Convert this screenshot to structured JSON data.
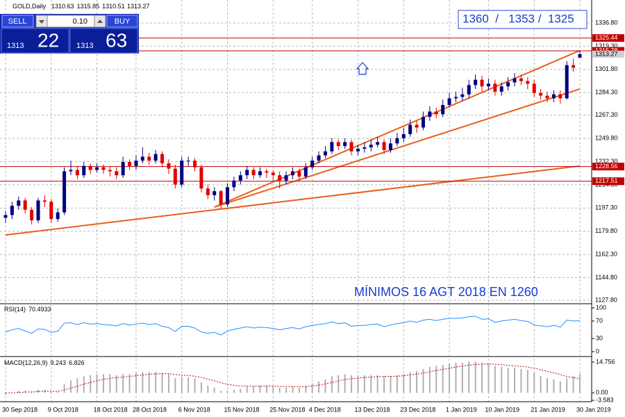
{
  "trade_panel": {
    "sell": "SELL",
    "buy": "BUY",
    "volume": "0.10",
    "bid_big": "1313",
    "bid_small": "22",
    "ask_big": "1313",
    "ask_small": "63"
  },
  "chart_data": [
    {
      "type": "candlestick",
      "title": "GOLD,Daily",
      "categories": [
        "30 Sep 2018",
        null,
        null,
        null,
        null,
        null,
        null,
        "9 Oct 2018",
        null,
        null,
        null,
        null,
        null,
        null,
        "18 Oct 2018",
        null,
        null,
        null,
        null,
        null,
        "28 Oct 2018",
        null,
        null,
        null,
        null,
        null,
        null,
        "6 Nov 2018",
        null,
        null,
        null,
        null,
        null,
        null,
        "15 Nov 2018",
        null,
        null,
        null,
        null,
        null,
        null,
        "25 Nov 2018",
        null,
        null,
        null,
        null,
        null,
        "4 Dec 2018",
        null,
        null,
        null,
        null,
        null,
        null,
        "13 Dec 2018",
        null,
        null,
        null,
        null,
        null,
        null,
        "23 Dec 2018",
        null,
        null,
        null,
        null,
        null,
        null,
        "1 Jan 2019",
        null,
        null,
        null,
        null,
        null,
        "10 Jan 2019",
        null,
        null,
        null,
        null,
        null,
        null,
        "21 Jan 2019",
        null,
        null,
        null,
        null,
        null,
        null,
        "30 Jan 2019"
      ],
      "series": [
        {
          "up_color": "#000080",
          "down_color": "#e00000",
          "open": [
            1190,
            1192,
            1199,
            1203,
            1196,
            1188,
            1203,
            1202,
            1189,
            1194,
            1225,
            1226,
            1222,
            1229,
            1226,
            1228,
            1226,
            1225,
            1222,
            1232,
            1229,
            1233,
            1236,
            1233,
            1238,
            1231,
            1227,
            1215,
            1233,
            1233,
            1228,
            1212,
            1207,
            1210,
            1200,
            1213,
            1218,
            1222,
            1226,
            1222,
            1225,
            1224,
            1222,
            1218,
            1222,
            1225,
            1221,
            1228,
            1233,
            1237,
            1240,
            1247,
            1244,
            1247,
            1240,
            1242,
            1243,
            1245,
            1247,
            1241,
            1246,
            1250,
            1253,
            1260,
            1258,
            1266,
            1270,
            1268,
            1275,
            1280,
            1281,
            1283,
            1290,
            1294,
            1289,
            1291,
            1285,
            1289,
            1292,
            1295,
            1293,
            1291,
            1284,
            1282,
            1280,
            1283,
            1280,
            1305,
            1310.63
          ],
          "high": [
            1195,
            1202,
            1206,
            1205,
            1198,
            1205,
            1207,
            1204,
            1197,
            1228,
            1233,
            1229,
            1232,
            1231,
            1231,
            1230,
            1229,
            1228,
            1236,
            1234,
            1237,
            1243,
            1239,
            1241,
            1240,
            1234,
            1230,
            1236,
            1236,
            1235,
            1230,
            1215,
            1213,
            1211,
            1216,
            1221,
            1225,
            1229,
            1228,
            1228,
            1227,
            1226,
            1225,
            1225,
            1228,
            1227,
            1231,
            1236,
            1240,
            1244,
            1250,
            1249,
            1250,
            1249,
            1245,
            1247,
            1249,
            1251,
            1249,
            1250,
            1254,
            1258,
            1264,
            1263,
            1270,
            1274,
            1273,
            1279,
            1284,
            1285,
            1288,
            1294,
            1298,
            1297,
            1295,
            1294,
            1292,
            1296,
            1299,
            1298,
            1296,
            1294,
            1287,
            1285,
            1286,
            1286,
            1308,
            1310,
            1315.85
          ],
          "low": [
            1186,
            1189,
            1196,
            1193,
            1185,
            1186,
            1198,
            1186,
            1187,
            1192,
            1222,
            1219,
            1220,
            1223,
            1224,
            1223,
            1221,
            1219,
            1220,
            1226,
            1226,
            1231,
            1230,
            1231,
            1228,
            1223,
            1212,
            1213,
            1229,
            1225,
            1209,
            1204,
            1203,
            1197,
            1198,
            1210,
            1215,
            1219,
            1219,
            1220,
            1220,
            1218,
            1212,
            1215,
            1219,
            1218,
            1219,
            1226,
            1231,
            1235,
            1238,
            1241,
            1242,
            1237,
            1237,
            1239,
            1240,
            1243,
            1238,
            1239,
            1244,
            1247,
            1251,
            1254,
            1256,
            1263,
            1265,
            1266,
            1273,
            1277,
            1278,
            1280,
            1287,
            1285,
            1286,
            1282,
            1282,
            1286,
            1289,
            1290,
            1287,
            1281,
            1279,
            1277,
            1277,
            1276,
            1279,
            1300,
            1310.51
          ],
          "close": [
            1192,
            1199,
            1203,
            1196,
            1188,
            1203,
            1202,
            1189,
            1194,
            1225,
            1226,
            1222,
            1229,
            1226,
            1228,
            1226,
            1225,
            1222,
            1232,
            1229,
            1233,
            1236,
            1233,
            1238,
            1231,
            1227,
            1215,
            1233,
            1233,
            1228,
            1212,
            1207,
            1210,
            1200,
            1213,
            1218,
            1222,
            1226,
            1222,
            1225,
            1224,
            1222,
            1218,
            1222,
            1225,
            1221,
            1228,
            1233,
            1237,
            1240,
            1247,
            1244,
            1247,
            1240,
            1242,
            1243,
            1245,
            1247,
            1241,
            1246,
            1250,
            1253,
            1260,
            1258,
            1266,
            1270,
            1268,
            1275,
            1280,
            1281,
            1283,
            1290,
            1294,
            1289,
            1291,
            1285,
            1289,
            1292,
            1295,
            1293,
            1291,
            1284,
            1282,
            1280,
            1283,
            1280,
            1305,
            1303,
            1313.27
          ]
        }
      ],
      "ylim": [
        1125.7,
        1354.1
      ],
      "yticks": [
        {
          "value": 1336.8,
          "label": "1336.80"
        },
        {
          "value": 1319.3,
          "label": "1319.30"
        },
        {
          "value": 1301.8,
          "label": "1301.80"
        },
        {
          "value": 1284.3,
          "label": "1284.30"
        },
        {
          "value": 1267.3,
          "label": "1267.30"
        },
        {
          "value": 1249.8,
          "label": "1249.80"
        },
        {
          "value": 1232.3,
          "label": "1232.30"
        },
        {
          "value": 1214.8,
          "label": "1214.80"
        },
        {
          "value": 1197.3,
          "label": "1197.30"
        },
        {
          "value": 1179.8,
          "label": "1179.80"
        },
        {
          "value": 1162.3,
          "label": "1162.30"
        },
        {
          "value": 1144.8,
          "label": "1144.80"
        },
        {
          "value": 1127.8,
          "label": "1127.80"
        }
      ],
      "grid": true,
      "levels": [
        {
          "value": 1325.44,
          "color": "#c00000"
        },
        {
          "value": 1315.78,
          "color": "#c00000"
        },
        {
          "value": 1228.56,
          "color": "#c00000"
        },
        {
          "value": 1217.51,
          "color": "#c00000"
        }
      ],
      "trendline_color": "#e8601c",
      "trendlines": [
        {
          "x": [
            0,
            88
          ],
          "y": [
            1177,
            1229
          ]
        },
        {
          "x": [
            32,
            88
          ],
          "y": [
            1198,
            1316
          ]
        },
        {
          "x": [
            32,
            88
          ],
          "y": [
            1198,
            1287
          ]
        }
      ],
      "annotations": [
        "1360  /   1353 /  1325",
        "MÍNIMOS 16 AGT 2018 EN 1260"
      ]
    },
    {
      "type": "line",
      "title": "RSI(14)",
      "color": "#1e90ff",
      "ylim": [
        0,
        100
      ],
      "yticks": [
        100,
        70,
        30,
        0
      ],
      "values": [
        45,
        50,
        53,
        47,
        42,
        52,
        51,
        44,
        47,
        65,
        66,
        62,
        66,
        63,
        64,
        62,
        61,
        59,
        64,
        61,
        63,
        65,
        62,
        64,
        58,
        55,
        46,
        58,
        58,
        54,
        45,
        42,
        44,
        38,
        47,
        51,
        54,
        57,
        54,
        56,
        55,
        53,
        50,
        53,
        55,
        52,
        57,
        60,
        62,
        64,
        68,
        64,
        66,
        58,
        60,
        60,
        62,
        63,
        57,
        61,
        64,
        66,
        70,
        67,
        72,
        74,
        71,
        74,
        76,
        76,
        77,
        80,
        81,
        74,
        75,
        67,
        70,
        72,
        74,
        71,
        69,
        61,
        59,
        57,
        60,
        56,
        72,
        70,
        70.4933
      ]
    },
    {
      "type": "macd",
      "title": "MACD(12,26,9)",
      "ylim": [
        -3.583,
        14.756
      ],
      "yticks": [
        14.756,
        {
          "value": 0,
          "label": "0.00"
        },
        -3.583
      ],
      "series": [
        {
          "color": "#b0b0b0",
          "values": [
            -1,
            0,
            1,
            1,
            0.5,
            1.5,
            1.5,
            0.5,
            0.5,
            4,
            6,
            7,
            8,
            8.5,
            9,
            9,
            9,
            8.5,
            9,
            9,
            9.5,
            10,
            10,
            10,
            9.5,
            9,
            7,
            7.5,
            7.5,
            7,
            5,
            3.5,
            2.5,
            1,
            1,
            1.5,
            2,
            3,
            3,
            3.5,
            3.5,
            3,
            2.5,
            2.5,
            3,
            2.5,
            3.5,
            4.5,
            5.5,
            6.5,
            8,
            8.5,
            9,
            8.5,
            8.5,
            8.5,
            8.5,
            8.5,
            8,
            8,
            8.5,
            9,
            10,
            10.5,
            11.5,
            12.5,
            13,
            13.5,
            14,
            14.5,
            14.5,
            15,
            15,
            14.5,
            14,
            13,
            12.5,
            12,
            12,
            11.5,
            11,
            9.5,
            8,
            7,
            6.5,
            5.5,
            7,
            8,
            9.243
          ]
        },
        {
          "color": "#c00000",
          "values": [
            0,
            0,
            0.2,
            0.4,
            0.4,
            0.6,
            0.8,
            0.7,
            0.7,
            1.4,
            2.3,
            3.2,
            4.2,
            5,
            5.8,
            6.5,
            7,
            7.3,
            7.6,
            7.9,
            8.2,
            8.6,
            8.9,
            9.1,
            9.2,
            9.2,
            8.8,
            8.5,
            8.3,
            8,
            7.4,
            6.6,
            5.8,
            4.9,
            4.1,
            3.6,
            3.3,
            3.2,
            3.2,
            3.2,
            3.3,
            3.2,
            3.1,
            3,
            3,
            2.9,
            3,
            3.3,
            3.7,
            4.3,
            5,
            5.7,
            6.4,
            6.8,
            7.1,
            7.4,
            7.6,
            7.8,
            7.9,
            7.9,
            8,
            8.2,
            8.6,
            9,
            9.5,
            10.1,
            10.7,
            11.3,
            11.8,
            12.4,
            12.8,
            13.3,
            13.6,
            13.8,
            13.9,
            13.7,
            13.5,
            13.2,
            13,
            12.7,
            12.4,
            11.8,
            11.1,
            10.3,
            9.6,
            8.8,
            7.8,
            7.3,
            6.826
          ]
        }
      ]
    }
  ]
}
